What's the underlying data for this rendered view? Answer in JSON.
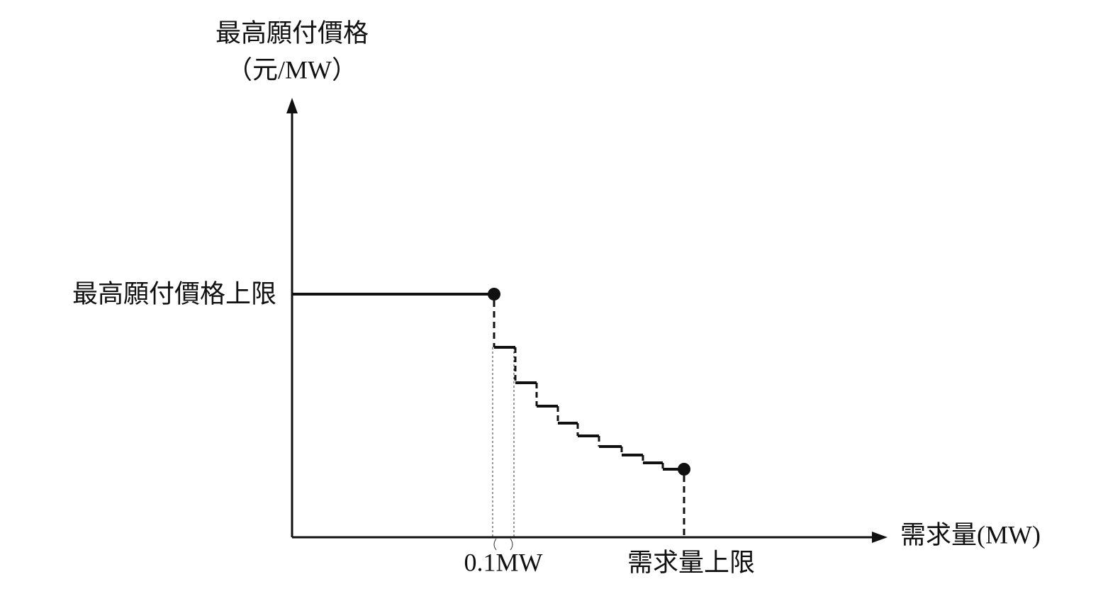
{
  "y_axis": {
    "label": "最高願付價格",
    "unit": "（元/MW）"
  },
  "x_axis": {
    "label": "需求量(MW)"
  },
  "annotations": {
    "price_cap": "最高願付價格上限",
    "step_width": "0.1MW",
    "quantity_cap": "需求量上限"
  }
}
